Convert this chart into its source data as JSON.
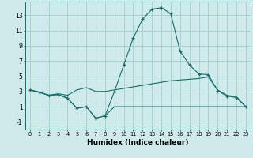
{
  "xlabel": "Humidex (Indice chaleur)",
  "xlim": [
    -0.5,
    23.5
  ],
  "ylim": [
    -2.0,
    14.8
  ],
  "yticks": [
    -1,
    1,
    3,
    5,
    7,
    9,
    11,
    13
  ],
  "xticks": [
    0,
    1,
    2,
    3,
    4,
    5,
    6,
    7,
    8,
    9,
    10,
    11,
    12,
    13,
    14,
    15,
    16,
    17,
    18,
    19,
    20,
    21,
    22,
    23
  ],
  "bg_color": "#ceeaea",
  "grid_color": "#aad0d0",
  "line_color": "#1a6b6b",
  "line1_x": [
    0,
    1,
    2,
    3,
    4,
    5,
    6,
    7,
    8,
    9,
    10,
    11,
    12,
    13,
    14,
    15,
    16,
    17,
    18,
    19,
    20,
    21,
    22,
    23
  ],
  "line1_y": [
    3.2,
    2.9,
    2.5,
    2.6,
    2.1,
    0.8,
    1.0,
    -0.5,
    -0.2,
    3.0,
    6.5,
    10.0,
    12.5,
    13.8,
    14.0,
    13.2,
    8.3,
    6.5,
    5.3,
    5.2,
    3.1,
    2.4,
    2.2,
    1.0
  ],
  "line2_x": [
    0,
    1,
    2,
    3,
    4,
    5,
    6,
    7,
    8,
    9,
    10,
    11,
    12,
    13,
    14,
    15,
    16,
    17,
    18,
    19,
    20,
    21,
    22,
    23
  ],
  "line2_y": [
    3.2,
    2.9,
    2.5,
    2.7,
    2.5,
    3.2,
    3.5,
    3.0,
    3.0,
    3.2,
    3.4,
    3.6,
    3.8,
    4.0,
    4.2,
    4.4,
    4.5,
    4.6,
    4.7,
    4.9,
    3.2,
    2.5,
    2.3,
    1.0
  ],
  "line3_x": [
    0,
    1,
    2,
    3,
    4,
    5,
    6,
    7,
    8,
    9,
    10,
    11,
    12,
    13,
    14,
    15,
    16,
    17,
    18,
    19,
    20,
    21,
    22,
    23
  ],
  "line3_y": [
    3.2,
    2.9,
    2.5,
    2.6,
    2.1,
    0.8,
    1.0,
    -0.5,
    -0.2,
    1.0,
    1.0,
    1.0,
    1.0,
    1.0,
    1.0,
    1.0,
    1.0,
    1.0,
    1.0,
    1.0,
    1.0,
    1.0,
    1.0,
    1.0
  ]
}
